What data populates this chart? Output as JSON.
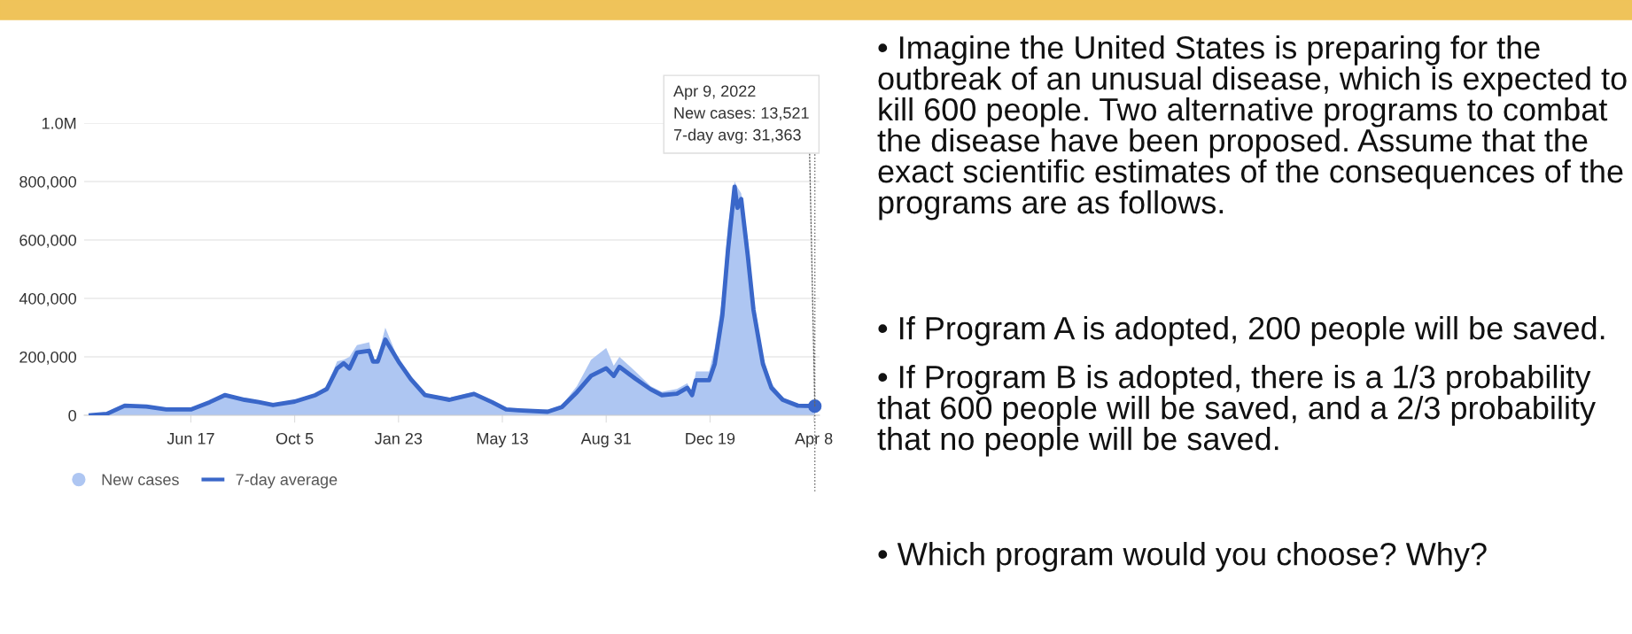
{
  "chart_data": {
    "type": "line",
    "series": [
      {
        "name": "New cases",
        "type": "area",
        "color": "#aec6f2",
        "x": [
          "2020-03-03",
          "2020-03-20",
          "2020-04-08",
          "2020-05-01",
          "2020-05-22",
          "2020-06-17",
          "2020-07-07",
          "2020-07-23",
          "2020-08-13",
          "2020-08-28",
          "2020-09-12",
          "2020-10-05",
          "2020-10-27",
          "2020-11-08",
          "2020-11-19",
          "2020-11-26",
          "2020-12-02",
          "2020-12-10",
          "2020-12-23",
          "2020-12-27",
          "2021-01-01",
          "2021-01-09",
          "2021-01-23",
          "2021-02-05",
          "2021-02-20",
          "2021-03-18",
          "2021-04-13",
          "2021-05-02",
          "2021-05-17",
          "2021-06-05",
          "2021-07-01",
          "2021-07-15",
          "2021-07-31",
          "2021-08-15",
          "2021-08-31",
          "2021-09-08",
          "2021-09-14",
          "2021-10-01",
          "2021-10-17",
          "2021-10-29",
          "2021-11-14",
          "2021-11-25",
          "2021-11-30",
          "2021-12-04",
          "2021-12-18",
          "2021-12-24",
          "2022-01-01",
          "2022-01-07",
          "2022-01-14",
          "2022-01-17",
          "2022-01-21",
          "2022-01-28",
          "2022-02-03",
          "2022-02-13",
          "2022-02-22",
          "2022-03-06",
          "2022-03-22",
          "2022-04-09"
        ],
        "values": [
          0,
          8000,
          35000,
          32000,
          22000,
          24000,
          50000,
          75000,
          55000,
          48000,
          38000,
          50000,
          75000,
          100000,
          185000,
          190000,
          200000,
          240000,
          250000,
          180000,
          200000,
          300000,
          190000,
          130000,
          75000,
          60000,
          80000,
          50000,
          25000,
          15000,
          20000,
          35000,
          100000,
          190000,
          230000,
          170000,
          200000,
          150000,
          100000,
          80000,
          90000,
          110000,
          70000,
          150000,
          150000,
          230000,
          400000,
          650000,
          800000,
          780000,
          760000,
          600000,
          400000,
          200000,
          110000,
          60000,
          38000,
          13521
        ]
      },
      {
        "name": "7-day average",
        "type": "line",
        "color": "#3a67c9",
        "marker": "none",
        "line_style": "solid",
        "x": [
          "2020-03-03",
          "2020-03-20",
          "2020-04-08",
          "2020-05-01",
          "2020-05-22",
          "2020-06-17",
          "2020-07-07",
          "2020-07-23",
          "2020-08-13",
          "2020-08-28",
          "2020-09-12",
          "2020-10-05",
          "2020-10-27",
          "2020-11-08",
          "2020-11-19",
          "2020-11-26",
          "2020-12-02",
          "2020-12-10",
          "2020-12-23",
          "2020-12-27",
          "2021-01-01",
          "2021-01-09",
          "2021-01-23",
          "2021-02-05",
          "2021-02-20",
          "2021-03-18",
          "2021-04-13",
          "2021-05-02",
          "2021-05-17",
          "2021-05-30",
          "2021-06-30",
          "2021-07-15",
          "2021-07-31",
          "2021-08-15",
          "2021-08-31",
          "2021-09-08",
          "2021-09-14",
          "2021-10-01",
          "2021-10-17",
          "2021-10-29",
          "2021-11-14",
          "2021-11-25",
          "2021-11-30",
          "2021-12-04",
          "2021-12-18",
          "2021-12-24",
          "2022-01-01",
          "2022-01-07",
          "2022-01-14",
          "2022-01-17",
          "2022-01-21",
          "2022-01-28",
          "2022-02-03",
          "2022-02-13",
          "2022-02-22",
          "2022-03-06",
          "2022-03-22",
          "2022-04-09"
        ],
        "values": [
          0,
          5000,
          33000,
          30000,
          20000,
          20000,
          45000,
          69000,
          53000,
          45000,
          35000,
          47000,
          69000,
          90000,
          160000,
          178000,
          160000,
          215000,
          221000,
          184000,
          184000,
          259000,
          184000,
          124000,
          69000,
          53000,
          73000,
          45000,
          20000,
          17000,
          12000,
          28000,
          79000,
          135000,
          161000,
          135000,
          166000,
          125000,
          89000,
          69000,
          74000,
          94000,
          69000,
          120000,
          120000,
          176000,
          341000,
          566000,
          782000,
          710000,
          740000,
          546000,
          361000,
          176000,
          94000,
          53000,
          33000,
          31363
        ]
      }
    ],
    "xlim": [
      "2020-02-25",
      "2022-04-14"
    ],
    "xticks": [
      {
        "value": "2020-06-17",
        "label": "Jun 17"
      },
      {
        "value": "2020-10-05",
        "label": "Oct 5"
      },
      {
        "value": "2021-01-23",
        "label": "Jan 23"
      },
      {
        "value": "2021-05-13",
        "label": "May 13"
      },
      {
        "value": "2021-08-31",
        "label": "Aug 31"
      },
      {
        "value": "2021-12-19",
        "label": "Dec 19"
      },
      {
        "value": "2022-04-08",
        "label": "Apr 8"
      }
    ],
    "ylim": [
      0,
      1000000
    ],
    "yticks": [
      0,
      {
        "value": 200000,
        "label": "200,000"
      },
      {
        "value": 400000,
        "label": "400,000"
      },
      {
        "value": 600000,
        "label": "600,000"
      },
      {
        "value": 800000,
        "label": "800,000"
      },
      {
        "value": 1000000,
        "label": "1.0M"
      }
    ],
    "grid": "y",
    "legend": "bottom left",
    "ref_lines": [
      {
        "axis": "x",
        "value": "2022-04-09",
        "color": "#666666",
        "line_style": "dotted"
      }
    ],
    "annotations": [
      {
        "text": "Apr 9, 2022\nNew cases: 13,521\n7-day avg: 31,363",
        "x": "2022-04-09",
        "y": 31363
      },
      "• Imagine the United States is preparing for the outbreak of an unusual disease, which is expected to kill 600 people. Two alternative programs to combat the disease have been proposed. Assume that the exact scientific estimates of the consequences of the programs are as follows.",
      "• If Program A is adopted, 200 people will be saved.",
      "• If Program B is adopted, there is a 1/3 probability that 600 people will be saved, and a 2/3 probability that no people will be saved.",
      "• Which program would you choose? Why?"
    ]
  }
}
